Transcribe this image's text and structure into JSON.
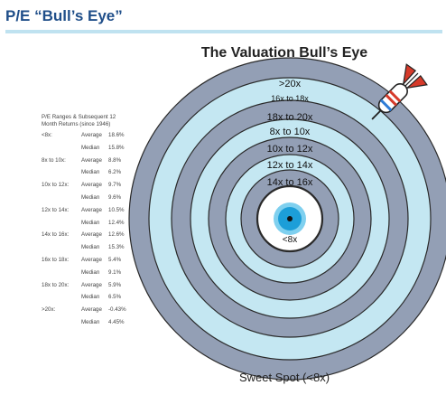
{
  "header": {
    "title": "P/E “Bull’s Eye”"
  },
  "diagram": {
    "title": "The Valuation Bull’s Eye",
    "caption": "Sweet Spot (<8x)",
    "rings": [
      ">20x",
      "16x to 18x",
      "18x to 20x",
      "8x to 10x",
      "10x to 12x",
      "12x to 14x",
      "14x to 16x",
      "<8x"
    ],
    "colors": {
      "dark": "#939fb5",
      "light": "#c4e7f2",
      "center": "#1c9ed8",
      "title_blue": "#1f4e89"
    }
  },
  "table": {
    "header": [
      "P/E Ranges & Subsequent 12",
      "Month Returns (since 1946)"
    ],
    "rows": [
      {
        "range": "<8x:",
        "stat": "Average",
        "value": "18.6%"
      },
      {
        "range": "",
        "stat": "Median",
        "value": "15.8%"
      },
      {
        "range": "8x to 10x:",
        "stat": "Average",
        "value": "8.8%"
      },
      {
        "range": "",
        "stat": "Median",
        "value": "6.2%"
      },
      {
        "range": "10x to 12x:",
        "stat": "Average",
        "value": "9.7%"
      },
      {
        "range": "",
        "stat": "Median",
        "value": "9.6%"
      },
      {
        "range": "12x to 14x:",
        "stat": "Average",
        "value": "10.5%"
      },
      {
        "range": "",
        "stat": "Median",
        "value": "12.4%"
      },
      {
        "range": "14x to 16x:",
        "stat": "Average",
        "value": "12.6%"
      },
      {
        "range": "",
        "stat": "Median",
        "value": "15.3%"
      },
      {
        "range": "16x to 18x:",
        "stat": "Average",
        "value": "5.4%"
      },
      {
        "range": "",
        "stat": "Median",
        "value": "9.1%"
      },
      {
        "range": "18x to 20x:",
        "stat": "Average",
        "value": "5.9%"
      },
      {
        "range": "",
        "stat": "Median",
        "value": "6.5%"
      },
      {
        "range": ">20x:",
        "stat": "Average",
        "value": "-0.43%"
      },
      {
        "range": "",
        "stat": "Median",
        "value": "4.45%"
      }
    ]
  }
}
